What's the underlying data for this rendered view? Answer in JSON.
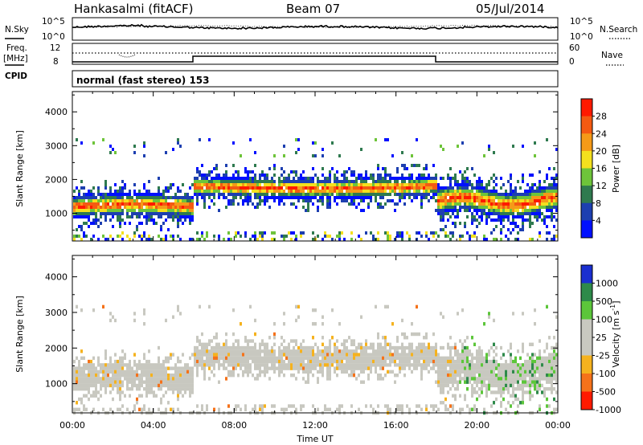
{
  "header": {
    "station": "Hankasalmi (fitACF)",
    "beam": "Beam 07",
    "date": "05/Jul/2014"
  },
  "noise_panel": {
    "left_label": "N.Sky",
    "right_label": "N.Search",
    "left_ticks": [
      "10^5",
      "10^0"
    ],
    "right_ticks": [
      "10^5",
      "10^0"
    ]
  },
  "freq_panel": {
    "left_label_1": "Freq.",
    "left_label_2": "[MHz]",
    "left_ticks": [
      "12",
      "8"
    ],
    "right_ticks": [
      "60",
      "0"
    ],
    "right_label": "Nave",
    "cpid_label": "CPID",
    "cpid_text": "normal (fast stereo) 153"
  },
  "chart_data": [
    {
      "type": "heatmap",
      "panel": "power",
      "ylabel": "Slant Range [km]",
      "yticks": [
        "4000",
        "3000",
        "2000",
        "1000"
      ],
      "ylim": [
        180,
        4600
      ],
      "xlim_hours": [
        0,
        24
      ],
      "colorbar_label": "Power [dB]",
      "colorbar_ticks": [
        "28",
        "24",
        "20",
        "16",
        "12",
        "8",
        "4"
      ],
      "colorbar_colors": [
        "#0010ff",
        "#1d3fb0",
        "#2f7a4f",
        "#6ec43a",
        "#f4e01e",
        "#f59a18",
        "#f45a12",
        "#ff1a00"
      ],
      "bands": [
        {
          "t0": 0.0,
          "t1": 6.0,
          "r0": 1050,
          "r1": 1550,
          "level": 26
        },
        {
          "t0": 6.0,
          "t1": 18.0,
          "r0": 1600,
          "r1": 2100,
          "level": 20
        },
        {
          "t0": 18.0,
          "t1": 24.0,
          "r0": 1100,
          "r1": 1800,
          "level": 24
        }
      ]
    },
    {
      "type": "heatmap",
      "panel": "velocity",
      "ylabel": "Slant Range [km]",
      "yticks": [
        "4000",
        "3000",
        "2000",
        "1000"
      ],
      "ylim": [
        180,
        4600
      ],
      "xlim_hours": [
        0,
        24
      ],
      "xticks": [
        "00:00",
        "04:00",
        "08:00",
        "12:00",
        "16:00",
        "20:00",
        "00:00"
      ],
      "xlabel": "Time UT",
      "colorbar_label": "Velocity [m s^-1]",
      "colorbar_ticks": [
        "1000",
        "500",
        "100",
        "25",
        "-25",
        "-100",
        "-500",
        "-1000"
      ],
      "colorbar_colors": [
        "#1a2fd0",
        "#2e8a4a",
        "#5cc63a",
        "#c8c8c0",
        "#c8c8c0",
        "#f5b21e",
        "#f5721a",
        "#ff1a00"
      ]
    }
  ]
}
